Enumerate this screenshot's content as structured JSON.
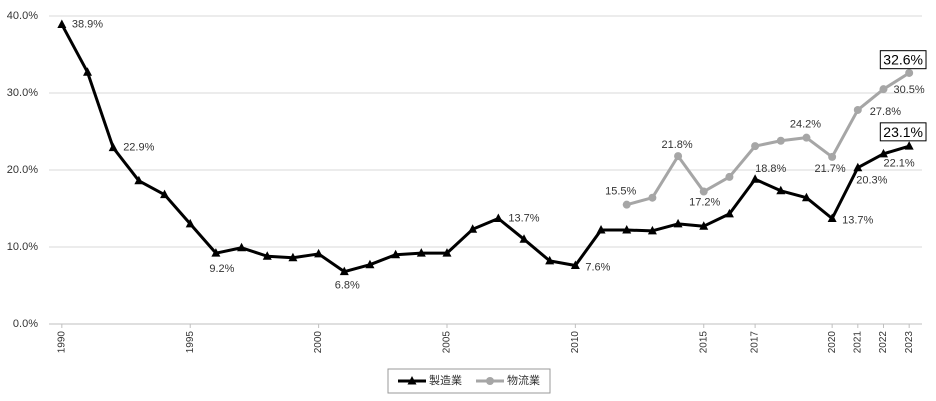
{
  "chart_data": {
    "type": "line",
    "x": [
      1990,
      1991,
      1992,
      1993,
      1994,
      1995,
      1996,
      1997,
      1998,
      1999,
      2000,
      2001,
      2002,
      2003,
      2004,
      2005,
      2006,
      2007,
      2008,
      2009,
      2010,
      2011,
      2012,
      2013,
      2014,
      2015,
      2016,
      2017,
      2018,
      2019,
      2020,
      2021,
      2022,
      2023
    ],
    "series": [
      {
        "name": "製造業",
        "color": "#000000",
        "values": [
          38.9,
          32.7,
          22.9,
          18.6,
          16.8,
          13.0,
          9.2,
          9.9,
          8.8,
          8.6,
          9.1,
          6.8,
          7.7,
          9.0,
          9.2,
          9.2,
          12.3,
          13.7,
          11.0,
          8.2,
          7.6,
          12.2,
          12.2,
          12.1,
          13.0,
          12.7,
          14.3,
          18.8,
          17.3,
          16.4,
          13.7,
          20.3,
          22.1,
          23.1
        ],
        "value_labels": [
          "38.9%",
          null,
          "22.9%",
          null,
          null,
          null,
          "9.2%",
          null,
          null,
          null,
          null,
          "6.8%",
          null,
          null,
          null,
          null,
          null,
          "13.7%",
          null,
          null,
          "7.6%",
          null,
          null,
          null,
          null,
          null,
          null,
          "18.8%",
          null,
          null,
          "13.7%",
          "20.3%",
          "22.1%",
          "23.1%"
        ]
      },
      {
        "name": "物流業",
        "color": "#a6a6a6",
        "values": [
          null,
          null,
          null,
          null,
          null,
          null,
          null,
          null,
          null,
          null,
          null,
          null,
          null,
          null,
          null,
          null,
          null,
          null,
          null,
          null,
          null,
          null,
          15.5,
          16.4,
          21.8,
          17.2,
          19.1,
          23.1,
          23.8,
          24.2,
          21.7,
          27.8,
          30.5,
          32.6
        ],
        "value_labels": [
          null,
          null,
          null,
          null,
          null,
          null,
          null,
          null,
          null,
          null,
          null,
          null,
          null,
          null,
          null,
          null,
          null,
          null,
          null,
          null,
          null,
          null,
          "15.5%",
          null,
          "21.8%",
          "17.2%",
          null,
          null,
          null,
          "24.2%",
          "21.7%",
          "27.8%",
          "30.5%",
          "32.6%"
        ]
      }
    ],
    "xlim": [
      1989.5,
      2023.5
    ],
    "xticks": [
      1990,
      1995,
      2000,
      2005,
      2010,
      2015,
      2017,
      2020,
      2021,
      2022,
      2023
    ],
    "ylim": [
      0,
      40
    ],
    "yticks": [
      {
        "value": 0,
        "label": "0.0%"
      },
      {
        "value": 10,
        "label": "10.0%"
      },
      {
        "value": 20,
        "label": "20.0%"
      },
      {
        "value": 30,
        "label": "30.0%"
      },
      {
        "value": 40,
        "label": "40.0%"
      }
    ],
    "grid": true,
    "legend": "bottom"
  }
}
